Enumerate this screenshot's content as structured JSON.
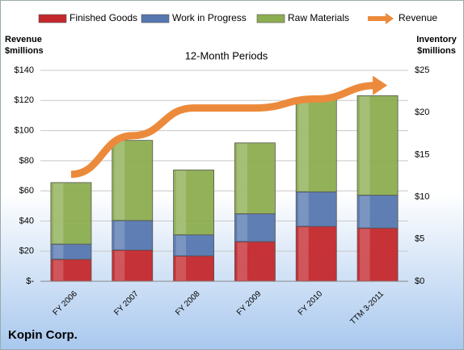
{
  "chart_data": {
    "type": "bar",
    "title": "12-Month Periods",
    "footer": "Kopin Corp.",
    "y_label": "Revenue $millions",
    "y2_label": "Inventory $millions",
    "categories": [
      "FY 2006",
      "FY 2007",
      "FY 2008",
      "FY 2009",
      "FY 2010",
      "TTM 3-2011"
    ],
    "series": [
      {
        "name": "Finished Goods",
        "color": "#c4282c",
        "axis": "y2",
        "stack": true,
        "values": [
          2.6,
          3.7,
          3.0,
          4.7,
          6.5,
          6.3
        ]
      },
      {
        "name": "Work in Progress",
        "color": "#5677b0",
        "axis": "y2",
        "stack": true,
        "values": [
          1.8,
          3.5,
          2.5,
          3.3,
          4.1,
          3.9
        ]
      },
      {
        "name": "Raw Materials",
        "color": "#8cad50",
        "axis": "y2",
        "stack": true,
        "values": [
          7.3,
          9.5,
          7.7,
          8.4,
          10.9,
          11.8
        ]
      },
      {
        "name": "Revenue",
        "color": "#ec8a3c",
        "type": "line",
        "values": [
          71,
          96.6,
          115,
          115,
          121,
          130
        ]
      }
    ],
    "ylim": [
      0,
      140
    ],
    "yticks": [
      {
        "value": 0,
        "label": "$-"
      },
      {
        "value": 20,
        "label": "$20"
      },
      {
        "value": 40,
        "label": "$40"
      },
      {
        "value": 60,
        "label": "$60"
      },
      {
        "value": 80,
        "label": "$80"
      },
      {
        "value": 100,
        "label": "$100"
      },
      {
        "value": 120,
        "label": "$120"
      },
      {
        "value": 140,
        "label": "$140"
      }
    ],
    "y2lim": [
      0,
      25
    ],
    "y2ticks": [
      {
        "value": 0,
        "label": "$0"
      },
      {
        "value": 5,
        "label": "$5"
      },
      {
        "value": 10,
        "label": "$10"
      },
      {
        "value": 15,
        "label": "$15"
      },
      {
        "value": 20,
        "label": "$20"
      },
      {
        "value": 25,
        "label": "$25"
      }
    ],
    "grid": true
  }
}
